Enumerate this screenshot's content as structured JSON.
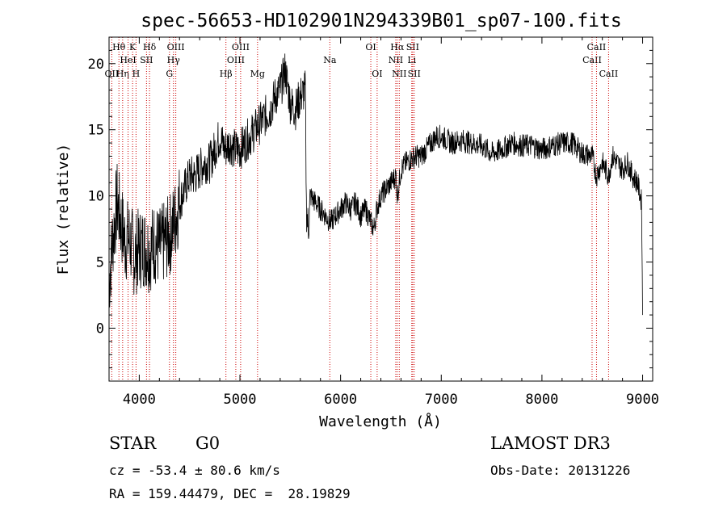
{
  "chart_data": {
    "type": "line",
    "title": "spec-56653-HD102901N294339B01_sp07-100.fits",
    "xlabel": "Wavelength (Å)",
    "ylabel": "Flux (relative)",
    "xlim": [
      3700,
      9100
    ],
    "ylim": [
      -4,
      22
    ],
    "xticks": [
      4000,
      5000,
      6000,
      7000,
      8000,
      9000
    ],
    "yticks": [
      0,
      5,
      10,
      15,
      20
    ],
    "series": [
      {
        "name": "flux",
        "x": [
          3700,
          3740,
          3780,
          3820,
          3860,
          3900,
          3950,
          4000,
          4050,
          4100,
          4150,
          4200,
          4250,
          4300,
          4350,
          4400,
          4450,
          4500,
          4550,
          4600,
          4650,
          4700,
          4750,
          4800,
          4850,
          4900,
          4950,
          5000,
          5050,
          5100,
          5150,
          5200,
          5250,
          5300,
          5350,
          5400,
          5450,
          5500,
          5550,
          5600,
          5650,
          5660,
          5680,
          5700,
          5750,
          5800,
          5850,
          5900,
          5950,
          6000,
          6050,
          6100,
          6150,
          6200,
          6250,
          6300,
          6330,
          6360,
          6400,
          6450,
          6500,
          6550,
          6563,
          6600,
          6650,
          6700,
          6750,
          6800,
          6850,
          6900,
          6950,
          7000,
          7100,
          7200,
          7300,
          7400,
          7500,
          7600,
          7700,
          7800,
          7900,
          8000,
          8100,
          8200,
          8300,
          8400,
          8500,
          8540,
          8600,
          8662,
          8700,
          8750,
          8800,
          8850,
          8900,
          8950,
          8990,
          9000
        ],
        "y": [
          3.5,
          7.0,
          9.5,
          8.0,
          6.5,
          6.8,
          5.5,
          6.0,
          6.2,
          5.8,
          6.5,
          6.0,
          6.5,
          7.0,
          8.0,
          9.5,
          10.5,
          11.5,
          11.5,
          12.0,
          12.5,
          12.5,
          13.5,
          14.5,
          13.5,
          14.0,
          13.5,
          13.5,
          14.0,
          14.5,
          15.0,
          15.5,
          16.0,
          16.5,
          17.5,
          18.0,
          19.5,
          17.0,
          16.5,
          17.5,
          18.0,
          9.0,
          7.5,
          10.0,
          9.5,
          9.0,
          8.5,
          8.0,
          8.5,
          9.0,
          9.5,
          9.0,
          9.5,
          8.5,
          9.0,
          8.0,
          7.5,
          9.0,
          10.0,
          10.5,
          11.0,
          11.5,
          10.0,
          12.0,
          12.5,
          12.8,
          13.0,
          13.0,
          13.5,
          14.0,
          14.5,
          14.5,
          14.0,
          14.2,
          14.0,
          13.8,
          13.2,
          13.5,
          14.0,
          13.8,
          13.8,
          13.5,
          13.8,
          14.0,
          14.0,
          13.2,
          13.0,
          11.5,
          12.5,
          11.5,
          13.0,
          12.5,
          12.0,
          12.5,
          11.5,
          11.0,
          9.5,
          1.0
        ]
      }
    ],
    "line_markers": [
      {
        "wavelength": 3727,
        "label": "OII",
        "row": 3
      },
      {
        "wavelength": 3798,
        "label": "Hθ",
        "row": 1
      },
      {
        "wavelength": 3835,
        "label": "Hη",
        "row": 3
      },
      {
        "wavelength": 3889,
        "label": "HeI",
        "row": 2
      },
      {
        "wavelength": 3934,
        "label": "K",
        "row": 1
      },
      {
        "wavelength": 3968,
        "label": "H",
        "row": 3
      },
      {
        "wavelength": 4072,
        "label": "SII",
        "row": 2
      },
      {
        "wavelength": 4102,
        "label": "Hδ",
        "row": 1
      },
      {
        "wavelength": 4300,
        "label": "G",
        "row": 3
      },
      {
        "wavelength": 4340,
        "label": "Hγ",
        "row": 2
      },
      {
        "wavelength": 4363,
        "label": "OIII",
        "row": 1
      },
      {
        "wavelength": 4861,
        "label": "Hβ",
        "row": 3
      },
      {
        "wavelength": 4959,
        "label": "OIII",
        "row": 2
      },
      {
        "wavelength": 5007,
        "label": "OIII",
        "row": 1
      },
      {
        "wavelength": 5175,
        "label": "Mg",
        "row": 3
      },
      {
        "wavelength": 5893,
        "label": "Na",
        "row": 2
      },
      {
        "wavelength": 6300,
        "label": "OI",
        "row": 1
      },
      {
        "wavelength": 6363,
        "label": "OI",
        "row": 3
      },
      {
        "wavelength": 6548,
        "label": "NII",
        "row": 2
      },
      {
        "wavelength": 6563,
        "label": "Hα",
        "row": 1
      },
      {
        "wavelength": 6583,
        "label": "NII",
        "row": 3
      },
      {
        "wavelength": 6707,
        "label": "Li",
        "row": 2
      },
      {
        "wavelength": 6716,
        "label": "SII",
        "row": 1
      },
      {
        "wavelength": 6731,
        "label": "SII",
        "row": 3
      },
      {
        "wavelength": 8498,
        "label": "CaII",
        "row": 2
      },
      {
        "wavelength": 8542,
        "label": "CaII",
        "row": 1
      },
      {
        "wavelength": 8662,
        "label": "CaII",
        "row": 3
      }
    ]
  },
  "info": {
    "class": "STAR",
    "subclass": "G0",
    "survey": "LAMOST DR3",
    "cz": "cz = -53.4 ± 80.6 km/s",
    "obs_date": "Obs-Date: 20131226",
    "radec": "RA = 159.44479, DEC =  28.19829"
  },
  "colors": {
    "axis": "#000000",
    "spectrum": "#000000",
    "marker_line": "#cc0000"
  }
}
